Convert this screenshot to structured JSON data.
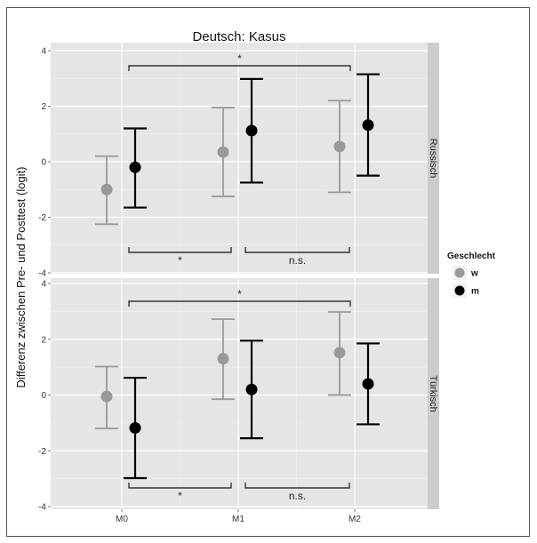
{
  "chart_data": {
    "type": "scatter",
    "title": "Deutsch: Kasus",
    "ylabel": "Differenz zwischen Pre- und Posttest (logit)",
    "xlabel": "",
    "categories": [
      "M0",
      "M1",
      "M2"
    ],
    "ylim": [
      -4,
      4
    ],
    "yticks": [
      "4",
      "2",
      "0",
      "-2",
      "-4"
    ],
    "grid": true,
    "legend": {
      "title": "Geschlecht",
      "placement": "right",
      "entries": [
        {
          "label": "w",
          "color": "#999999"
        },
        {
          "label": "m",
          "color": "#000000"
        }
      ]
    },
    "panels": [
      {
        "strip": "Russisch",
        "series": [
          {
            "key": "w",
            "color": "#999999",
            "points": [
              {
                "x": "M0",
                "y": -1.0,
                "lower": -2.25,
                "upper": 0.2
              },
              {
                "x": "M1",
                "y": 0.35,
                "lower": -1.25,
                "upper": 1.95
              },
              {
                "x": "M2",
                "y": 0.55,
                "lower": -1.1,
                "upper": 2.2
              }
            ]
          },
          {
            "key": "m",
            "color": "#000000",
            "points": [
              {
                "x": "M0",
                "y": -0.2,
                "lower": -1.65,
                "upper": 1.2
              },
              {
                "x": "M1",
                "y": 1.12,
                "lower": -0.75,
                "upper": 2.98
              },
              {
                "x": "M2",
                "y": 1.32,
                "lower": -0.5,
                "upper": 3.15
              }
            ]
          }
        ],
        "annotations": [
          {
            "text": "*",
            "from": "M0",
            "to": "M2",
            "side": "top"
          },
          {
            "text": "*",
            "from": "M0",
            "to": "M1",
            "side": "bottom"
          },
          {
            "text": "n.s.",
            "from": "M1",
            "to": "M2",
            "side": "bottom"
          }
        ]
      },
      {
        "strip": "Türkisch",
        "series": [
          {
            "key": "w",
            "color": "#999999",
            "points": [
              {
                "x": "M0",
                "y": -0.05,
                "lower": -1.2,
                "upper": 1.02
              },
              {
                "x": "M1",
                "y": 1.3,
                "lower": -0.15,
                "upper": 2.72
              },
              {
                "x": "M2",
                "y": 1.52,
                "lower": 0.0,
                "upper": 2.98
              }
            ]
          },
          {
            "key": "m",
            "color": "#000000",
            "points": [
              {
                "x": "M0",
                "y": -1.18,
                "lower": -2.98,
                "upper": 0.62
              },
              {
                "x": "M1",
                "y": 0.2,
                "lower": -1.55,
                "upper": 1.95
              },
              {
                "x": "M2",
                "y": 0.4,
                "lower": -1.05,
                "upper": 1.85
              }
            ]
          }
        ],
        "annotations": [
          {
            "text": "*",
            "from": "M0",
            "to": "M2",
            "side": "top"
          },
          {
            "text": "*",
            "from": "M0",
            "to": "M1",
            "side": "bottom"
          },
          {
            "text": "n.s.",
            "from": "M1",
            "to": "M2",
            "side": "bottom"
          }
        ]
      }
    ]
  }
}
